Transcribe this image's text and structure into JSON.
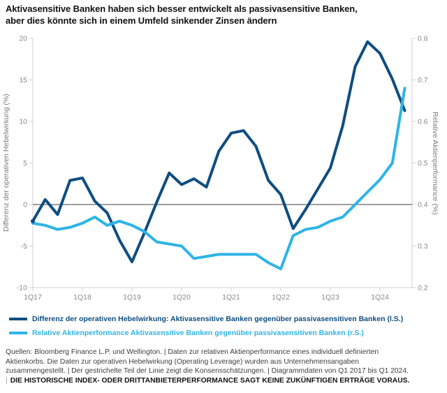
{
  "title": {
    "line1": "Aktivasensitive Banken haben sich besser entwickelt als passivasensitive Banken,",
    "line2": "aber dies könnte sich in einem Umfeld sinkender Zinsen ändern"
  },
  "colors": {
    "dark_blue": "#0e4d80",
    "light_blue": "#2eb4e6",
    "zero_line": "#7f7f7f",
    "axis_frame": "#d0d0d0",
    "tick_text": "#8a8a8a"
  },
  "chart_data": {
    "type": "line",
    "x": [
      "1Q17",
      "2Q17",
      "3Q17",
      "4Q17",
      "1Q18",
      "2Q18",
      "3Q18",
      "4Q18",
      "1Q19",
      "2Q19",
      "3Q19",
      "4Q19",
      "1Q20",
      "2Q20",
      "3Q20",
      "4Q20",
      "1Q21",
      "2Q21",
      "3Q21",
      "4Q21",
      "1Q22",
      "2Q22",
      "3Q22",
      "4Q22",
      "1Q23",
      "2Q23",
      "3Q23",
      "4Q23",
      "1Q24",
      "2Q24",
      "3Q24"
    ],
    "x_tick_labels": [
      "1Q17",
      "1Q18",
      "1Q19",
      "1Q20",
      "1Q21",
      "1Q22",
      "1Q23",
      "1Q24"
    ],
    "series": [
      {
        "name": "Differenz der operativen Hebelwirkung: Aktivasensitive Banken gegenüber passivasensitiven Banken (l.S.)",
        "axis": "left",
        "color": "#0e4d80",
        "values": [
          -2.0,
          0.6,
          -1.2,
          2.9,
          3.2,
          0.4,
          -1.0,
          -4.3,
          -6.9,
          -3.4,
          0.3,
          3.8,
          2.4,
          3.1,
          2.1,
          6.4,
          8.6,
          8.9,
          7.0,
          2.9,
          1.2,
          -2.9,
          -0.6,
          1.9,
          4.4,
          9.5,
          16.6,
          19.6,
          18.2,
          15.1,
          11.3
        ]
      },
      {
        "name": "Relative Aktienperformance Aktivasensitive Banken gegenüber passivasensitiven Banken (r.S.)",
        "axis": "right",
        "color": "#2eb4e6",
        "values": [
          0.355,
          0.35,
          0.34,
          0.345,
          0.355,
          0.37,
          0.35,
          0.36,
          0.35,
          0.335,
          0.31,
          0.305,
          0.3,
          0.27,
          0.275,
          0.28,
          0.28,
          0.28,
          0.28,
          0.26,
          0.245,
          0.325,
          0.34,
          0.345,
          0.36,
          0.37,
          0.4,
          0.43,
          0.46,
          0.5,
          0.68
        ]
      }
    ],
    "left_axis": {
      "label": "Differenz der operativen Hebelwirkung (%)",
      "ticks": [
        20,
        15,
        10,
        5,
        0,
        -5,
        -10
      ],
      "range": [
        -10,
        20
      ]
    },
    "right_axis": {
      "label": "Relative Aktienperformance (%)",
      "ticks": [
        0.8,
        0.7,
        0.6,
        0.5,
        0.4,
        0.3,
        0.2
      ],
      "range": [
        0.2,
        0.8
      ]
    },
    "zero_baseline_left": 0,
    "grid": false,
    "legend_position": "bottom"
  },
  "legend": [
    {
      "label": "Differenz der operativen Hebelwirkung: Aktivasensitive Banken gegenüber passivasensitiven Banken (l.S.)",
      "color": "#0e4d80"
    },
    {
      "label": "Relative Aktienperformance Aktivasensitive Banken gegenüber passivasensitiven Banken (r.S.)",
      "color": "#2eb4e6"
    }
  ],
  "footer": {
    "line1": "Quellen: Bloomberg Finance L.P. und Wellington.  |  Daten zur relativen Aktienperformance eines individuell definierten",
    "line2": "Aktienkorbs. Die Daten zur operativen Hebelwirkung (Operating Leverage) wurden aus Unternehmensangaben",
    "line3": "zusammengestellt.  |  Der gestrichelte Teil der Linie zeigt die Konsensschätzungen.  |  Diagrammdaten von Q1 2017 bis Q1 2024.",
    "disclaimer_bar": "|",
    "disclaimer": "DIE HISTORISCHE INDEX- ODER DRITTANBIETERPERFORMANCE SAGT KEINE ZUKÜNFTIGEN ERTRÄGE VORAUS."
  }
}
